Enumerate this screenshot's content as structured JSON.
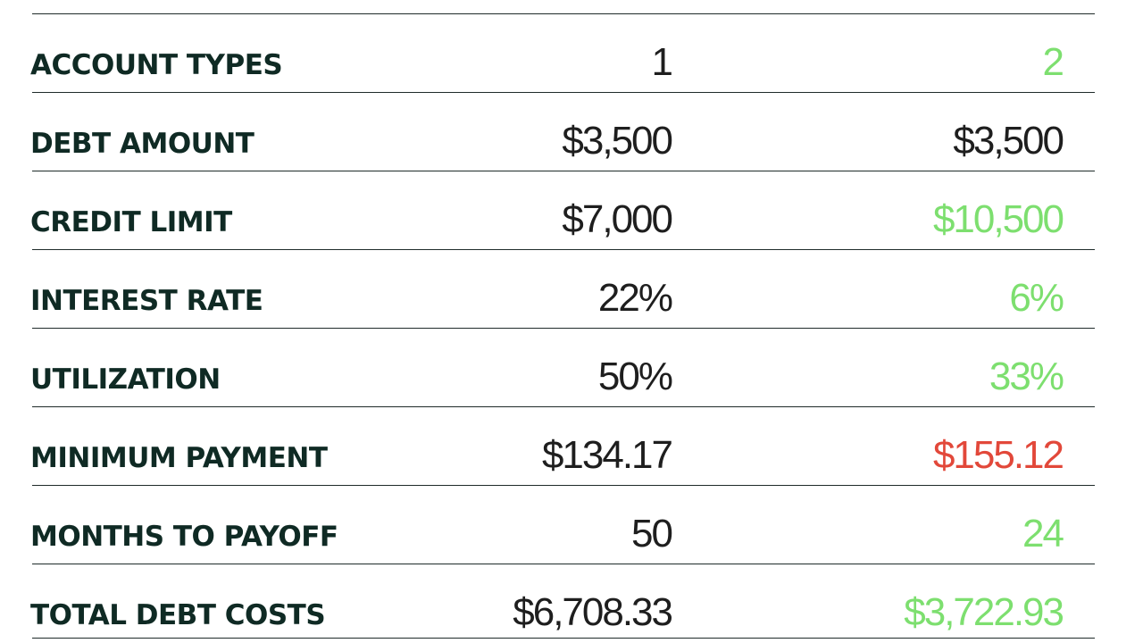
{
  "table": {
    "rows": [
      [
        "ACCOUNT TYPES",
        "1",
        "2"
      ],
      [
        "DEBT AMOUNT",
        "$3,500",
        "$3,500"
      ],
      [
        "CREDIT LIMIT",
        "$7,000",
        "$10,500"
      ],
      [
        "INTEREST RATE",
        "22%",
        "6%"
      ],
      [
        "UTILIZATION",
        "50%",
        "33%"
      ],
      [
        "MINIMUM PAYMENT",
        "$134.17",
        "$155.12"
      ],
      [
        "MONTHS TO PAYOFF",
        "50",
        "24"
      ],
      [
        "TOTAL DEBT COSTS",
        "$6,708.33",
        "$3,722.93"
      ]
    ]
  }
}
